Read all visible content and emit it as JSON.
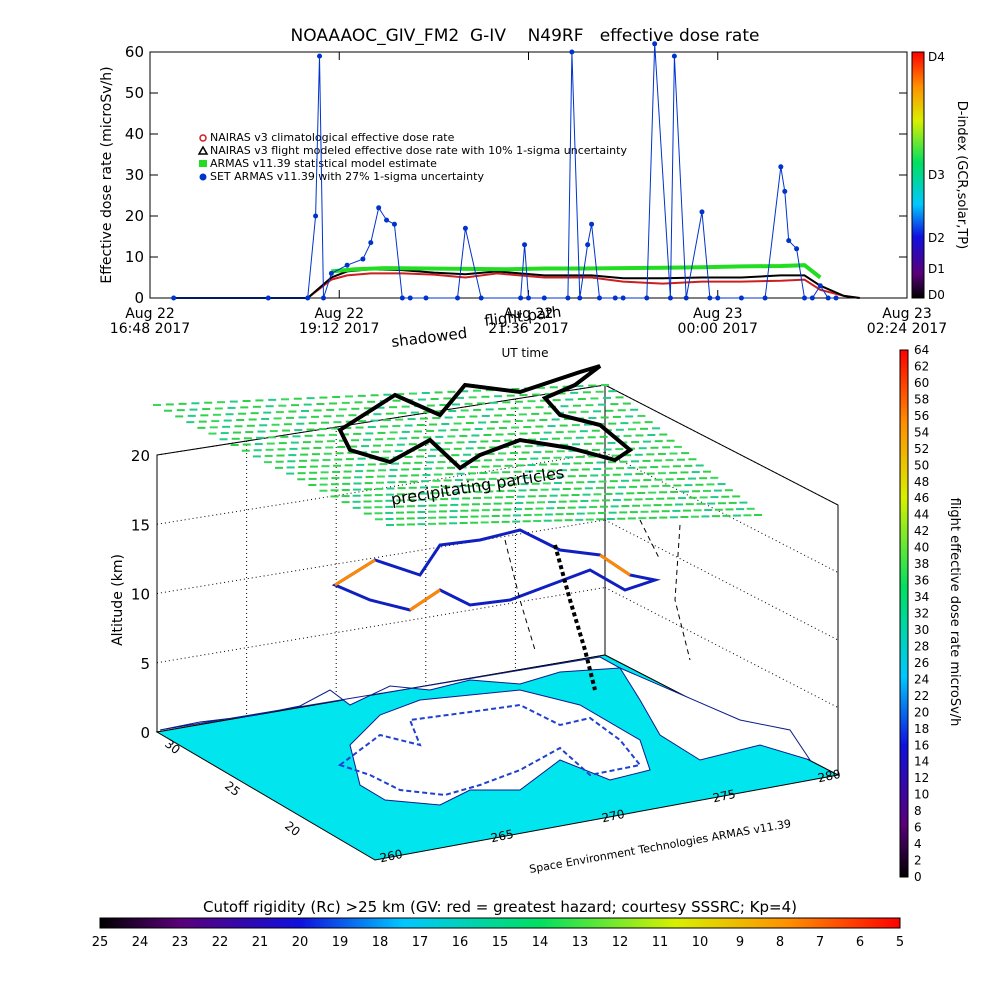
{
  "colors": {
    "nairas_clim": "#cc2020",
    "nairas_flight": "#000000",
    "armas_stat": "#22dd22",
    "set_armas": "#0033cc",
    "grid_ocean": "#00e5ee",
    "land": "#ffffff"
  },
  "chart_data": [
    {
      "type": "line",
      "title": "NOAAAOC_GIV_FM2  G-IV    N49RF   effective dose rate",
      "xlabel": "UT time",
      "ylabel": "Effective dose rate (microSv/h)",
      "ylim": [
        0,
        60
      ],
      "yticks": [
        "0",
        "10",
        "20",
        "30",
        "40",
        "50",
        "60"
      ],
      "xticks": [
        {
          "l1": "Aug 22",
          "l2": "16:48 2017"
        },
        {
          "l1": "Aug 22",
          "l2": "19:12 2017"
        },
        {
          "l1": "Aug 22",
          "l2": "21:36 2017"
        },
        {
          "l1": "Aug 23",
          "l2": "00:00 2017"
        },
        {
          "l1": "Aug 23",
          "l2": "02:24 2017"
        }
      ],
      "x_hours_range": [
        0,
        9.6
      ],
      "right_axis": {
        "label": "D-index (GCR,solar,TP)",
        "ticks": [
          "D0",
          "D1",
          "D2",
          "D3",
          "D4"
        ]
      },
      "legend": [
        "NAIRAS v3 climatological effective dose rate",
        "NAIRAS v3 flight modeled effective dose rate with 10% 1-sigma uncertainty",
        "ARMAS v11.39 statistical model estimate",
        "SET ARMAS v11.39 with 27% 1-sigma uncertainty"
      ],
      "series": [
        {
          "name": "NAIRAS v3 climatological effective dose rate",
          "x": [
            0.3,
            1.2,
            2.0,
            2.3,
            2.5,
            2.8,
            3.2,
            3.6,
            4.0,
            4.4,
            5.0,
            5.6,
            6.0,
            6.5,
            7.0,
            7.5,
            8.0,
            8.3,
            8.5,
            8.8,
            9.0
          ],
          "y": [
            0,
            0,
            0,
            4.5,
            5.5,
            6,
            6,
            5.7,
            5,
            6,
            5,
            5,
            4,
            3.5,
            4,
            4,
            4.2,
            4.5,
            2,
            0.5,
            0
          ]
        },
        {
          "name": "NAIRAS v3 flight modeled effective dose rate with 10% 1-sigma uncertainty",
          "x": [
            0.3,
            1.2,
            2.0,
            2.3,
            2.5,
            2.8,
            3.2,
            3.6,
            4.0,
            4.4,
            5.0,
            5.6,
            6.0,
            6.5,
            7.0,
            7.5,
            8.0,
            8.3,
            8.5,
            8.8,
            9.0
          ],
          "y": [
            0,
            0,
            0,
            5,
            6.5,
            7,
            6.8,
            6.2,
            5.8,
            6.5,
            5.5,
            5.5,
            4.8,
            4.8,
            5,
            5,
            5.5,
            5.5,
            3,
            0.5,
            0
          ]
        },
        {
          "name": "ARMAS v11.39 statistical model estimate",
          "x": [
            2.3,
            2.6,
            3.0,
            3.5,
            4.0,
            4.5,
            5.0,
            5.5,
            6.0,
            6.5,
            7.0,
            7.5,
            8.0,
            8.3,
            8.5
          ],
          "y": [
            6.5,
            7,
            7.3,
            7.2,
            7.1,
            7,
            7.2,
            7.2,
            7.3,
            7.4,
            7.5,
            7.7,
            7.8,
            8,
            5
          ]
        },
        {
          "name": "SET ARMAS v11.39 with 27% 1-sigma uncertainty",
          "x": [
            0.3,
            1.5,
            2.0,
            2.1,
            2.15,
            2.2,
            2.3,
            2.5,
            2.7,
            2.8,
            2.9,
            3.0,
            3.1,
            3.2,
            3.3,
            3.5,
            3.9,
            4.0,
            4.2,
            4.7,
            4.75,
            4.8,
            5.0,
            5.3,
            5.35,
            5.45,
            5.55,
            5.6,
            5.7,
            5.9,
            6.0,
            6.3,
            6.4,
            6.6,
            6.65,
            6.8,
            7.0,
            7.1,
            7.2,
            7.5,
            7.8,
            8.0,
            8.05,
            8.1,
            8.2,
            8.3,
            8.4,
            8.5,
            8.6,
            8.7
          ],
          "y": [
            0,
            0,
            0,
            20,
            59,
            0,
            6,
            8,
            9.5,
            13.5,
            22,
            19,
            18,
            0,
            0,
            0,
            0,
            17,
            0,
            0,
            13,
            0,
            0,
            0,
            60,
            0,
            13,
            18,
            0,
            0,
            0,
            0,
            62,
            0,
            59,
            0,
            21,
            0,
            0,
            0,
            0,
            32,
            26,
            14,
            12,
            0,
            0,
            3,
            0,
            0
          ]
        }
      ]
    },
    {
      "type": "scatter",
      "title": "",
      "view": "3d-perspective",
      "annotations": [
        "shadowed",
        "flight path",
        "precipitating particles"
      ],
      "zlabel": "Altitude (km)",
      "zticks": [
        "0",
        "5",
        "10",
        "15",
        "20"
      ],
      "ylabel_ticks": [
        "30",
        "25",
        "20"
      ],
      "xlabel_ticks": [
        "260",
        "265",
        "270",
        "275",
        "280"
      ],
      "footer": "Space Environment Technologies ARMAS v11.39",
      "colorbar_right": {
        "label": "flight effective dose rate microSv/h",
        "range": [
          0,
          64
        ],
        "ticks": [
          "0",
          "2",
          "4",
          "6",
          "8",
          "10",
          "12",
          "14",
          "16",
          "18",
          "20",
          "22",
          "24",
          "26",
          "28",
          "30",
          "32",
          "34",
          "36",
          "38",
          "40",
          "42",
          "44",
          "46",
          "48",
          "50",
          "52",
          "54",
          "56",
          "58",
          "60",
          "62",
          "64"
        ]
      },
      "colorbar_bottom": {
        "label": "Cutoff rigidity (Rc) >25 km (GV: red = greatest hazard; courtesy SSSRC; Kp=4)",
        "ticks": [
          "25",
          "24",
          "23",
          "22",
          "21",
          "20",
          "19",
          "18",
          "17",
          "16",
          "15",
          "14",
          "13",
          "12",
          "11",
          "10",
          "9",
          "8",
          "7",
          "6",
          "5"
        ]
      }
    }
  ]
}
